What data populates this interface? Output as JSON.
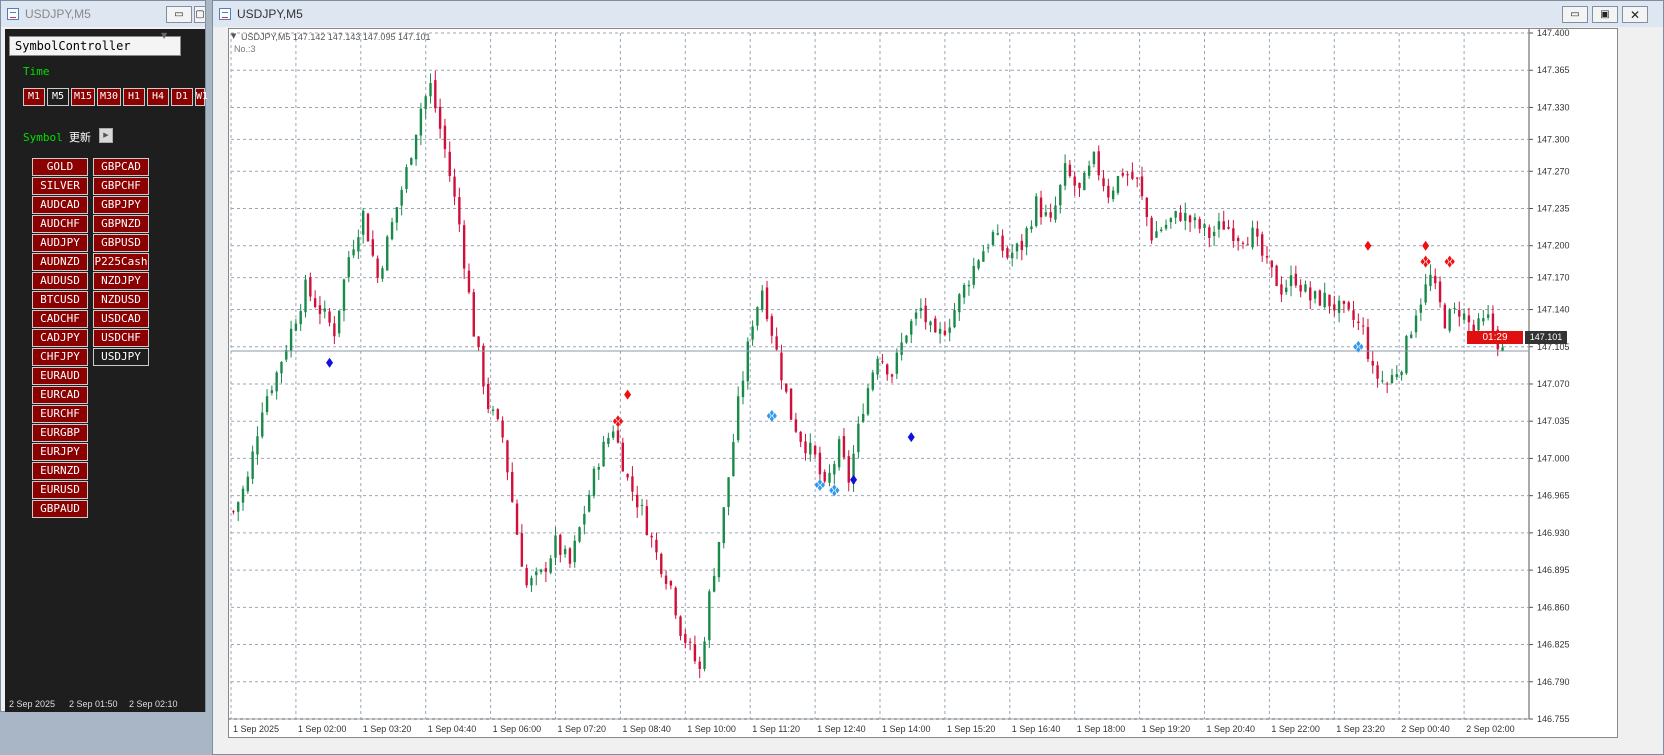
{
  "left_window": {
    "title": "USDJPY,M5",
    "panel_title": "SymbolController",
    "time_label": "Time",
    "timeframes": [
      "M1",
      "M5",
      "M15",
      "M30",
      "H1",
      "H4",
      "D1",
      "W1"
    ],
    "selected_timeframe": "M5",
    "symbol_label": "Symbol",
    "refresh_label": "更新",
    "symbols_col1": [
      "GOLD",
      "SILVER",
      "AUDCAD",
      "AUDCHF",
      "AUDJPY",
      "AUDNZD",
      "AUDUSD",
      "BTCUSD",
      "CADCHF",
      "CADJPY",
      "CHFJPY",
      "EURAUD",
      "EURCAD",
      "EURCHF",
      "EURGBP",
      "EURJPY",
      "EURNZD",
      "EURUSD",
      "GBPAUD"
    ],
    "symbols_col2": [
      "GBPCAD",
      "GBPCHF",
      "GBPJPY",
      "GBPNZD",
      "GBPUSD",
      "P225Cash",
      "NZDJPY",
      "NZDUSD",
      "USDCAD",
      "USDCHF",
      "USDJPY"
    ],
    "selected_symbol": "USDJPY",
    "bottom_times": [
      "2 Sep 2025",
      "2 Sep 01:50",
      "2 Sep 02:10"
    ]
  },
  "chart_window": {
    "title": "USDJPY,M5",
    "info_line": "USDJPY,M5  147.142 147.143 147.095 147.101",
    "sub_info": "No.:3",
    "countdown": "01:29",
    "current_price": "147.101",
    "colors": {
      "bull": "#1a8a4a",
      "bear": "#d0103a",
      "signal_red": "#ee1111",
      "signal_blue": "#1111dd",
      "signal_lightblue": "#3399ee",
      "price_tag": "#e01010"
    }
  },
  "chart_data": {
    "type": "candlestick",
    "symbol": "USDJPY",
    "timeframe": "M5",
    "ylim": [
      146.755,
      147.4
    ],
    "y_ticks": [
      "147.400",
      "147.365",
      "147.330",
      "147.300",
      "147.270",
      "147.235",
      "147.200",
      "147.170",
      "147.140",
      "147.105",
      "147.070",
      "147.035",
      "147.000",
      "146.965",
      "146.930",
      "146.895",
      "146.860",
      "146.825",
      "146.790",
      "146.755"
    ],
    "x_ticks": [
      "1 Sep 2025",
      "1 Sep 02:00",
      "1 Sep 03:20",
      "1 Sep 04:40",
      "1 Sep 06:00",
      "1 Sep 07:20",
      "1 Sep 08:40",
      "1 Sep 10:00",
      "1 Sep 11:20",
      "1 Sep 12:40",
      "1 Sep 14:00",
      "1 Sep 15:20",
      "1 Sep 16:40",
      "1 Sep 18:00",
      "1 Sep 19:20",
      "1 Sep 20:40",
      "1 Sep 22:00",
      "1 Sep 23:20",
      "2 Sep 00:40",
      "2 Sep 02:00"
    ],
    "close_path": [
      [
        0,
        146.95
      ],
      [
        3,
        146.98
      ],
      [
        6,
        147.05
      ],
      [
        9,
        147.08
      ],
      [
        12,
        147.12
      ],
      [
        15,
        147.16
      ],
      [
        18,
        147.14
      ],
      [
        21,
        147.12
      ],
      [
        24,
        147.19
      ],
      [
        27,
        147.23
      ],
      [
        30,
        147.17
      ],
      [
        33,
        147.22
      ],
      [
        36,
        147.27
      ],
      [
        39,
        147.33
      ],
      [
        41,
        147.35
      ],
      [
        44,
        147.29
      ],
      [
        47,
        147.22
      ],
      [
        50,
        147.12
      ],
      [
        53,
        147.05
      ],
      [
        56,
        147.02
      ],
      [
        59,
        146.93
      ],
      [
        61,
        146.88
      ],
      [
        64,
        146.89
      ],
      [
        67,
        146.92
      ],
      [
        70,
        146.9
      ],
      [
        73,
        146.95
      ],
      [
        76,
        147.0
      ],
      [
        79,
        147.03
      ],
      [
        82,
        146.98
      ],
      [
        85,
        146.95
      ],
      [
        88,
        146.91
      ],
      [
        91,
        146.88
      ],
      [
        93,
        146.84
      ],
      [
        95,
        146.82
      ],
      [
        97,
        146.8
      ],
      [
        99,
        146.87
      ],
      [
        102,
        146.95
      ],
      [
        105,
        147.05
      ],
      [
        108,
        147.13
      ],
      [
        110,
        147.16
      ],
      [
        113,
        147.1
      ],
      [
        116,
        147.04
      ],
      [
        118,
        147.02
      ],
      [
        121,
        147.0
      ],
      [
        123,
        146.97
      ],
      [
        126,
        147.01
      ],
      [
        128,
        146.98
      ],
      [
        131,
        147.05
      ],
      [
        134,
        147.1
      ],
      [
        137,
        147.08
      ],
      [
        140,
        147.12
      ],
      [
        143,
        147.14
      ],
      [
        146,
        147.11
      ],
      [
        149,
        147.13
      ],
      [
        152,
        147.16
      ],
      [
        155,
        147.19
      ],
      [
        158,
        147.21
      ],
      [
        161,
        147.19
      ],
      [
        164,
        147.2
      ],
      [
        167,
        147.24
      ],
      [
        170,
        147.22
      ],
      [
        173,
        147.27
      ],
      [
        176,
        147.25
      ],
      [
        179,
        147.28
      ],
      [
        182,
        147.25
      ],
      [
        185,
        147.27
      ],
      [
        188,
        147.26
      ],
      [
        191,
        147.21
      ],
      [
        194,
        147.22
      ],
      [
        197,
        147.23
      ],
      [
        200,
        147.22
      ],
      [
        203,
        147.21
      ],
      [
        206,
        147.22
      ],
      [
        209,
        147.21
      ],
      [
        212,
        147.21
      ],
      [
        215,
        147.18
      ],
      [
        218,
        147.16
      ],
      [
        221,
        147.17
      ],
      [
        224,
        147.15
      ],
      [
        227,
        147.15
      ],
      [
        230,
        147.14
      ],
      [
        233,
        147.13
      ],
      [
        235,
        147.12
      ],
      [
        237,
        147.08
      ],
      [
        240,
        147.07
      ],
      [
        243,
        147.09
      ],
      [
        246,
        147.14
      ],
      [
        249,
        147.17
      ],
      [
        252,
        147.13
      ],
      [
        255,
        147.14
      ],
      [
        258,
        147.12
      ],
      [
        261,
        147.13
      ],
      [
        264,
        147.1
      ]
    ],
    "signals": [
      {
        "type": "red-diamond",
        "bar": 82,
        "price": 147.06
      },
      {
        "type": "red-cluster",
        "bar": 80,
        "price": 147.035
      },
      {
        "type": "blue-diamond",
        "bar": 20,
        "price": 147.09
      },
      {
        "type": "lightblue-cluster",
        "bar": 112,
        "price": 147.04
      },
      {
        "type": "lightblue-cluster",
        "bar": 122,
        "price": 146.975
      },
      {
        "type": "lightblue-cluster",
        "bar": 125,
        "price": 146.97
      },
      {
        "type": "blue-diamond",
        "bar": 129,
        "price": 146.98
      },
      {
        "type": "blue-diamond",
        "bar": 141,
        "price": 147.02
      },
      {
        "type": "red-diamond",
        "bar": 236,
        "price": 147.2
      },
      {
        "type": "lightblue-cluster",
        "bar": 234,
        "price": 147.105
      },
      {
        "type": "red-diamond",
        "bar": 248,
        "price": 147.2
      },
      {
        "type": "red-cluster",
        "bar": 248,
        "price": 147.185
      },
      {
        "type": "red-cluster",
        "bar": 253,
        "price": 147.185
      }
    ]
  }
}
